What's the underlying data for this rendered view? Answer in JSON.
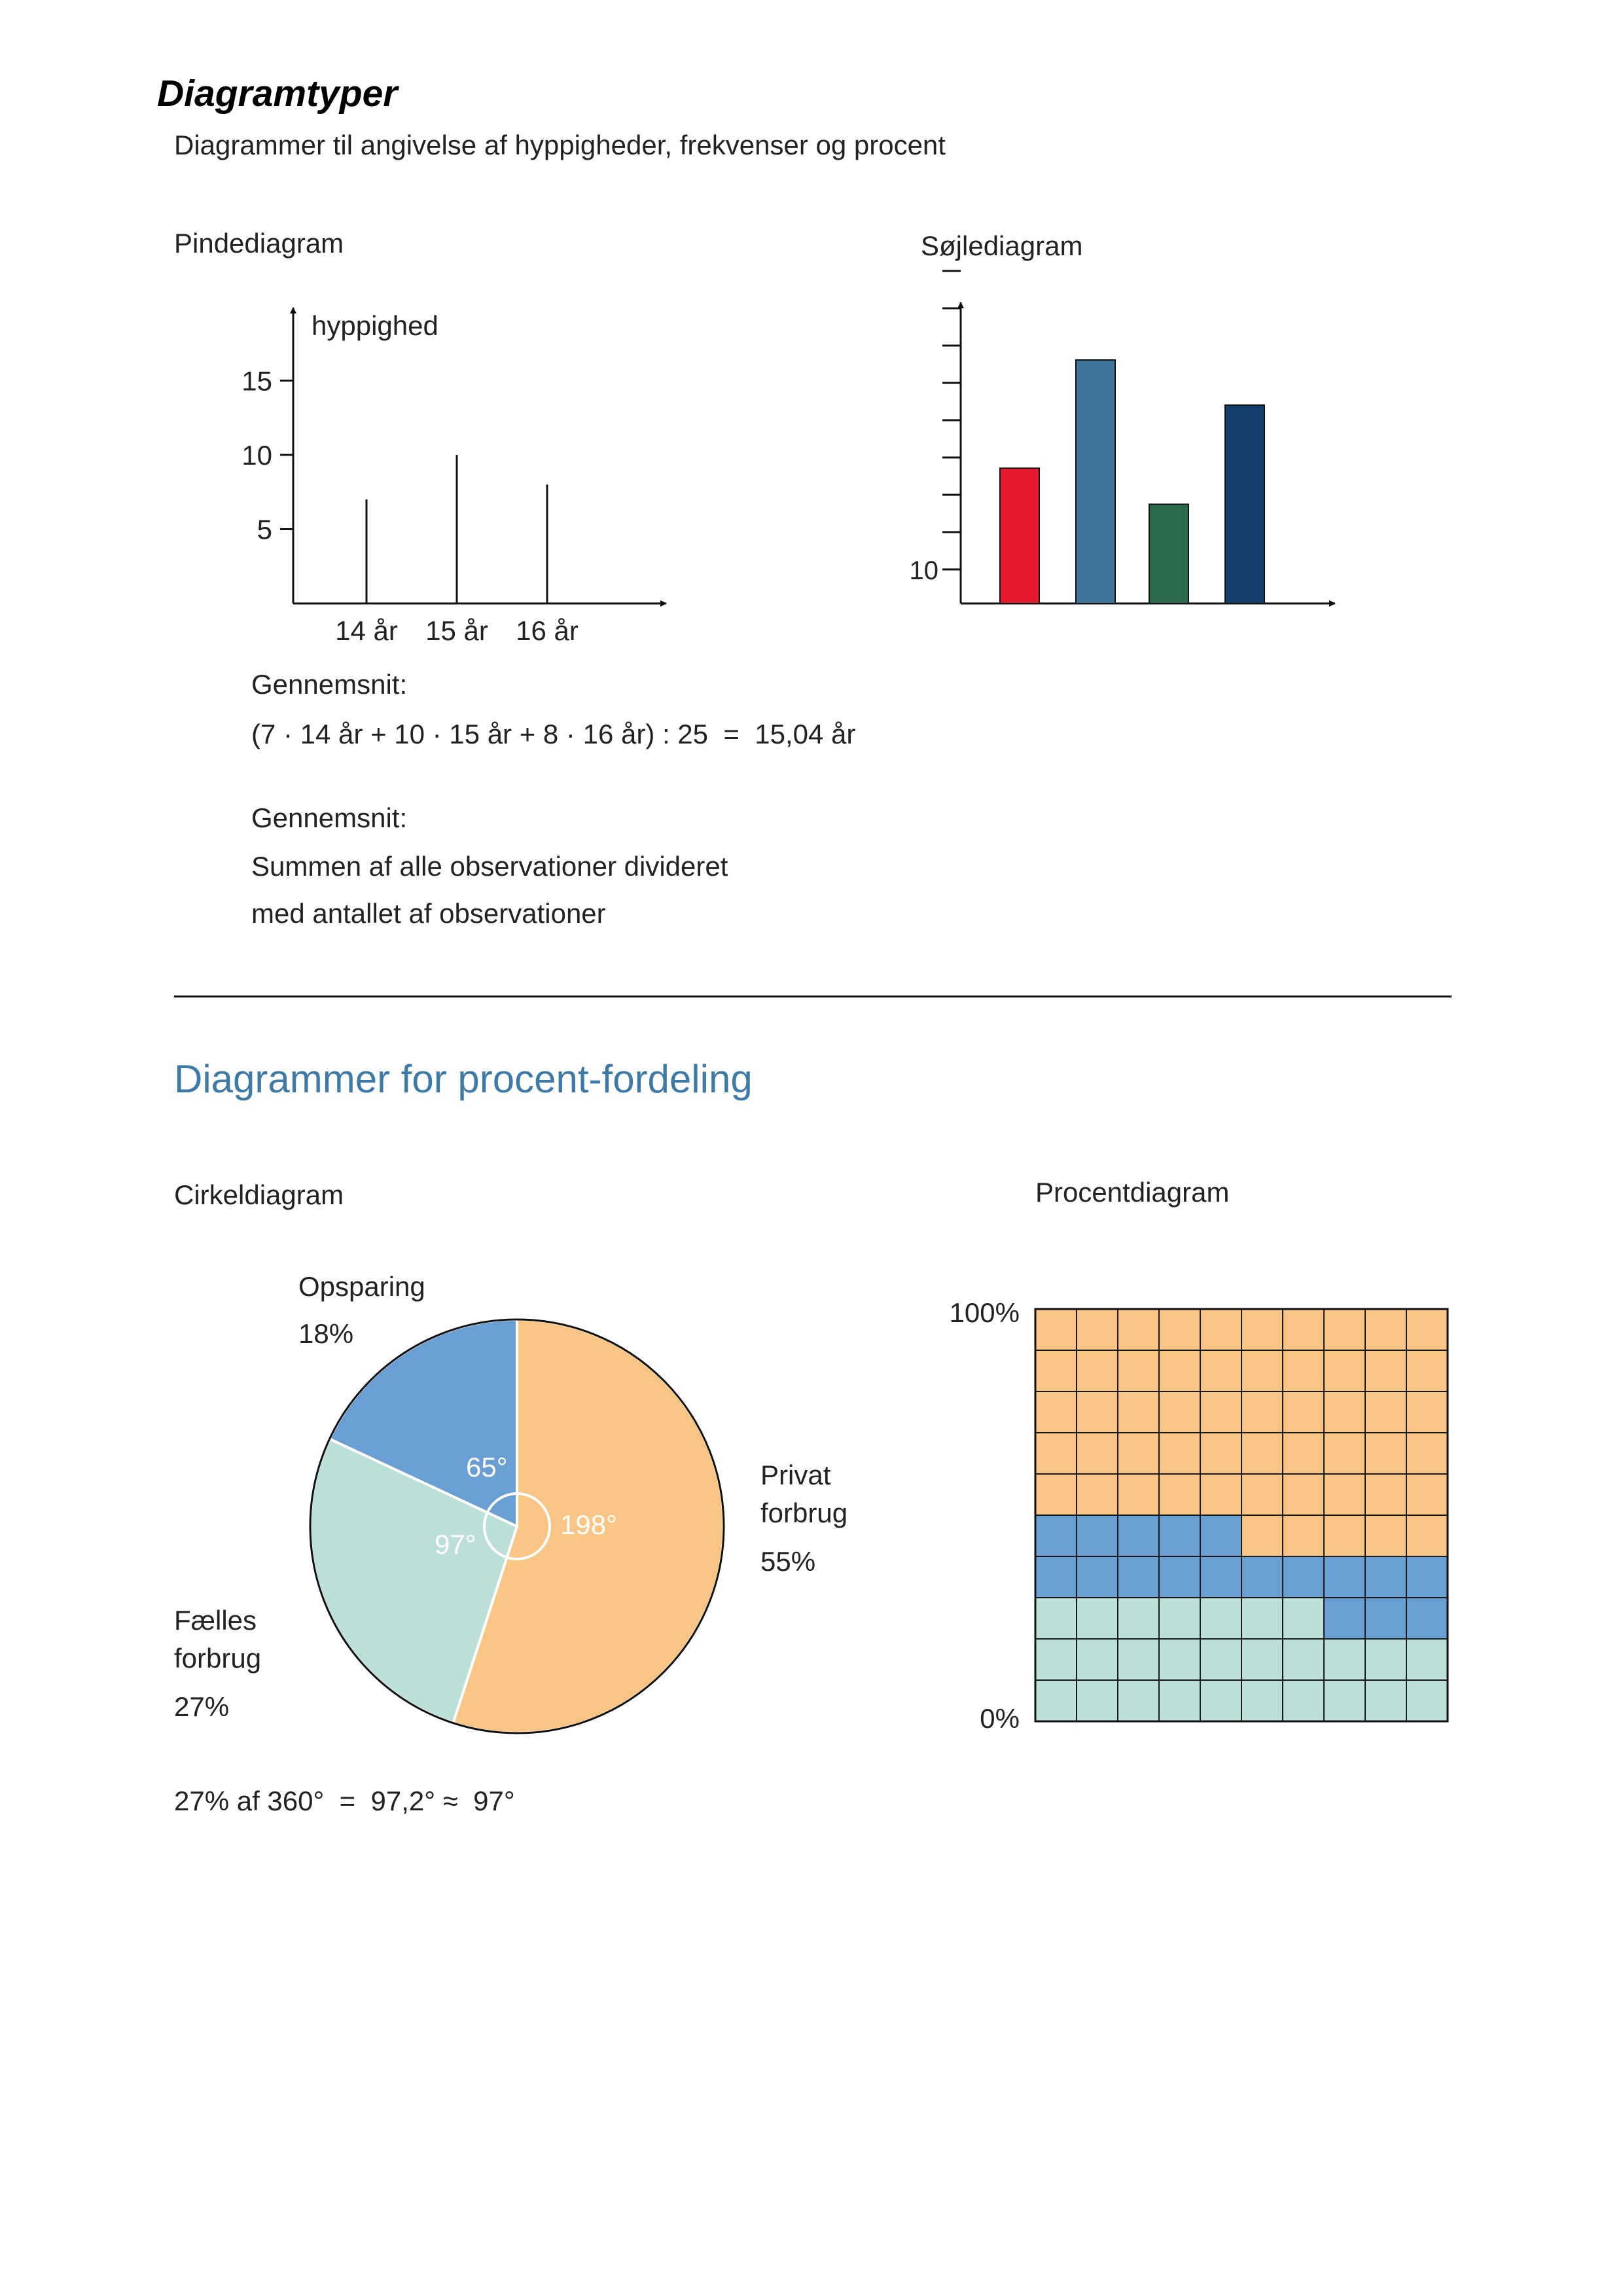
{
  "title": "Diagramtyper",
  "subtitle": "Diagrammer til angivelse af hyppigheder, frekvenser og procent",
  "section1": {
    "pin": {
      "heading": "Pindediagram",
      "ylabel": "hyppighed"
    },
    "bar": {
      "heading": "Søjlediagram"
    },
    "mean1": {
      "label": "Gennemsnit:",
      "formula": "(7 · 14 år + 10 · 15 år + 8 · 16 år) : 25  =  15,04 år"
    },
    "mean2": {
      "label": "Gennemsnit:",
      "line1": "Summen af alle observationer divideret",
      "line2": "med antallet af observationer"
    }
  },
  "section2": {
    "heading": "Diagrammer for procent-fordeling",
    "pie": {
      "heading": "Cirkeldiagram",
      "labels": {
        "opsparing": [
          "Opsparing",
          "18%"
        ],
        "privat": [
          "Privat",
          "forbrug",
          "55%"
        ],
        "faelles": [
          "Fælles",
          "forbrug",
          "27%"
        ]
      },
      "angles": [
        "65°",
        "97°",
        "198°"
      ],
      "formula": "27% af 360°  =  97,2° ≈  97°"
    },
    "grid": {
      "heading": "Procentdiagram",
      "top_label": "100%",
      "bottom_label": "0%"
    }
  },
  "colors": {
    "orange": "#f9c585",
    "blue": "#6a9fd4",
    "mint": "#bcdfd8",
    "red": "#e8192c",
    "steel": "#3f7499",
    "green": "#2b6a4c",
    "navy": "#133f6d",
    "heading_blue": "#3d7aa8"
  },
  "chart_data": [
    {
      "type": "bar",
      "variant": "pin",
      "categories": [
        "14 år",
        "15 år",
        "16 år"
      ],
      "values": [
        7,
        10,
        8
      ],
      "ylabel": "hyppighed",
      "yticks": [
        5,
        10,
        15
      ],
      "ylim": [
        0,
        17
      ]
    },
    {
      "type": "bar",
      "categories": [
        "",
        "",
        "",
        ""
      ],
      "values": [
        15,
        27,
        11,
        22
      ],
      "colors": [
        "#e8192c",
        "#3f7499",
        "#2b6a4c",
        "#133f6d"
      ],
      "yticks": [
        10
      ],
      "ylim": [
        9,
        37
      ]
    },
    {
      "type": "pie",
      "categories": [
        "Opsparing",
        "Fælles forbrug",
        "Privat forbrug"
      ],
      "values": [
        18,
        27,
        55
      ],
      "angles": [
        65,
        97,
        198
      ],
      "colors": [
        "#6a9fd4",
        "#bcdfd8",
        "#f9c585"
      ]
    },
    {
      "type": "heatmap",
      "variant": "percent-grid",
      "categories": [
        "Fælles forbrug",
        "Opsparing",
        "Privat forbrug"
      ],
      "values": [
        27,
        18,
        55
      ],
      "colors": [
        "#bcdfd8",
        "#6a9fd4",
        "#f9c585"
      ],
      "ylim": [
        0,
        100
      ]
    }
  ]
}
